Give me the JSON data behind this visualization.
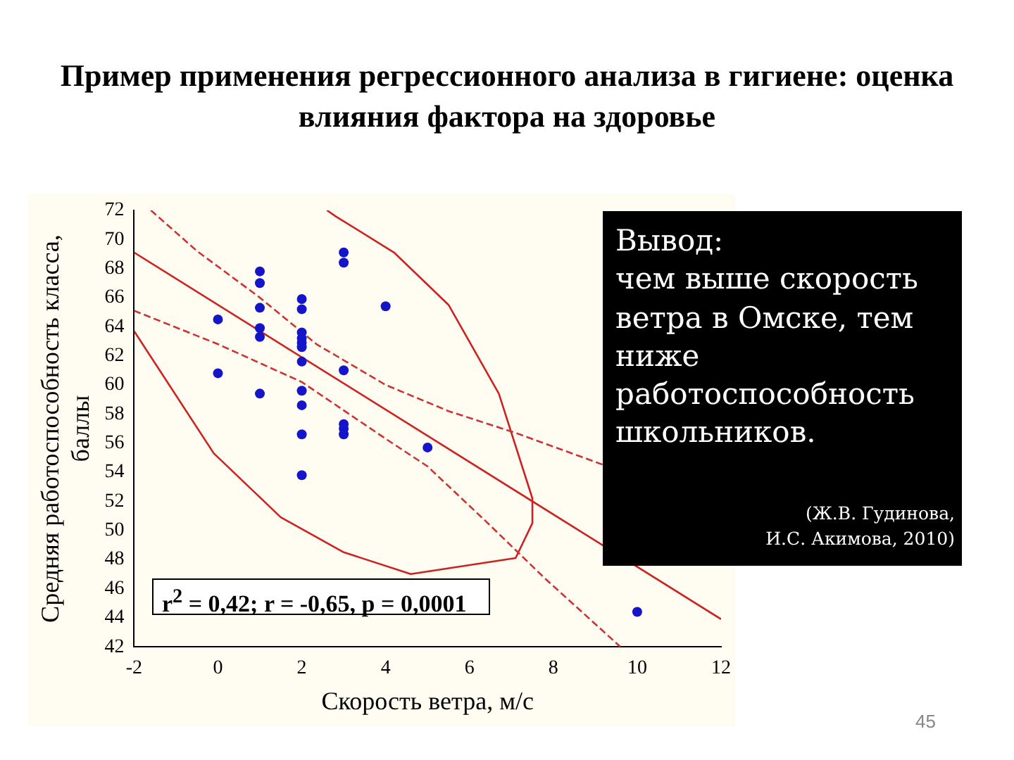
{
  "chart_data": {
    "type": "scatter",
    "title": "Пример применения регрессионного анализа в гигиене: оценка влияния фактора на здоровье",
    "xlabel": "Скорость ветра, м/с",
    "ylabel": "Средняя работоспособность класса,\nбаллы",
    "xlim": [
      -2,
      12
    ],
    "xticks": [
      -2,
      0,
      2,
      4,
      6,
      8,
      10,
      12
    ],
    "ylim": [
      42,
      72
    ],
    "yticks": [
      42,
      44,
      46,
      48,
      50,
      52,
      54,
      56,
      58,
      60,
      62,
      64,
      66,
      68,
      70,
      72
    ],
    "marker": "circle",
    "legend": false,
    "series": [
      {
        "type": "scatter",
        "color": "#1414c8",
        "x": [
          0,
          0,
          1,
          1,
          1,
          1,
          1,
          1,
          2,
          2,
          2,
          2,
          2,
          2,
          2,
          2,
          2,
          2,
          2,
          3,
          3,
          3,
          3,
          3,
          3,
          4,
          5,
          10
        ],
        "values": [
          64.5,
          60.8,
          67.8,
          67.0,
          65.3,
          63.9,
          63.3,
          59.4,
          65.9,
          65.2,
          63.6,
          63.2,
          62.9,
          62.6,
          61.6,
          59.6,
          58.6,
          56.6,
          53.8,
          69.1,
          68.4,
          61.0,
          57.3,
          57.0,
          56.6,
          65.4,
          55.7,
          44.4
        ]
      },
      {
        "type": "line",
        "color": "#cc2222",
        "marker": "none",
        "line_style": "solid",
        "x": [
          -2,
          12
        ],
        "values": [
          69.1,
          43.9
        ]
      },
      {
        "type": "line",
        "color": "#cc3333",
        "marker": "none",
        "line_style": "dashed",
        "x": [
          -1.6,
          -0.5,
          1,
          2.35,
          4,
          5.5,
          7.1,
          9.2
        ],
        "values": [
          72,
          69.2,
          66,
          62.8,
          60,
          58.2,
          56.7,
          54.5
        ]
      },
      {
        "type": "line",
        "color": "#cc3333",
        "marker": "none",
        "line_style": "dashed",
        "x": [
          -2,
          0,
          2,
          4,
          5,
          6.4,
          7.8,
          9.6
        ],
        "values": [
          65.1,
          62.8,
          60.2,
          56.3,
          54.4,
          50.6,
          46.7,
          42
        ]
      },
      {
        "type": "line",
        "color": "#cc2222",
        "marker": "none",
        "line_style": "solid",
        "x": [
          -2,
          -0.1,
          1.5,
          3,
          4.6,
          7.1,
          7.5,
          7.5,
          6.7,
          5.5,
          4.2,
          2.8,
          2.6
        ],
        "values": [
          63.7,
          55.3,
          50.9,
          48.5,
          47,
          48.1,
          50.5,
          52.2,
          59.4,
          65.5,
          69.1,
          71.6,
          72
        ]
      }
    ],
    "annotations": [
      "r$^{2}$ = 0,42;  r = -0,65, p = 0,0001",
      "Вывод:\nчем выше скорость ветра в Омске, тем ниже работоспособность школьников.",
      "(Ж.В. Гудинова,\nИ.С. Акимова, 2010)",
      "45"
    ]
  }
}
